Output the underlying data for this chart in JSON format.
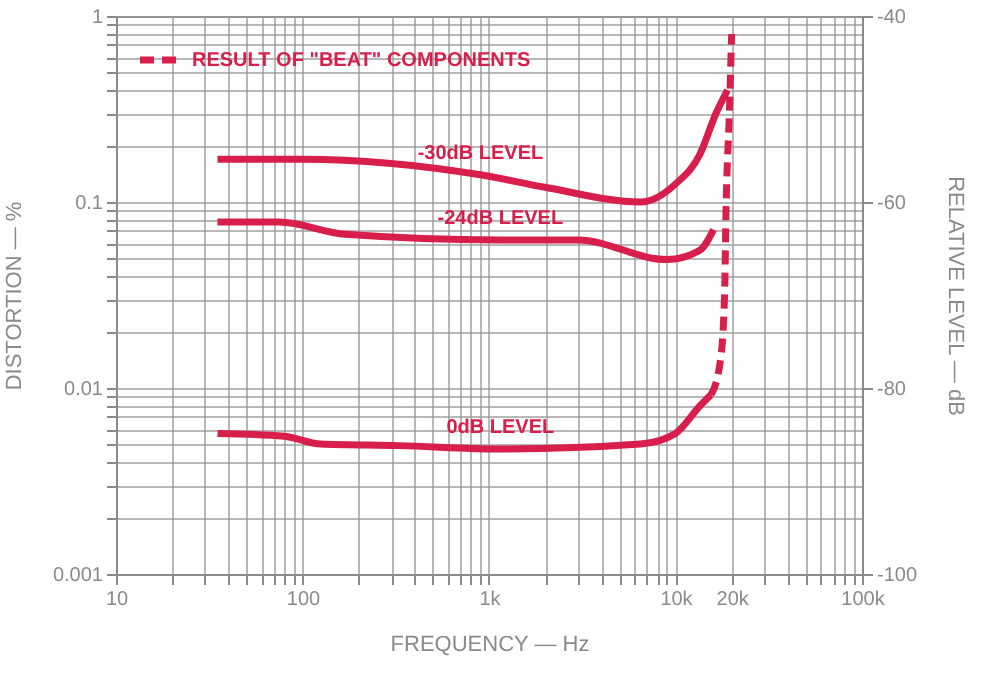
{
  "chart_data": {
    "type": "line",
    "xlabel": "FREQUENCY — Hz",
    "ylabel": "DISTORTION — %",
    "y2label": "RELATIVE LEVEL — dB",
    "log": "xy",
    "grid": true,
    "legend": "top left",
    "xlim": [
      10,
      100000
    ],
    "xticks": [
      10,
      {
        "value": 20,
        "label": null
      },
      {
        "value": 30,
        "label": null
      },
      {
        "value": 40,
        "label": null
      },
      {
        "value": 50,
        "label": null
      },
      {
        "value": 60,
        "label": null
      },
      {
        "value": 70,
        "label": null
      },
      {
        "value": 80,
        "label": null
      },
      {
        "value": 90,
        "label": null
      },
      100,
      {
        "value": 200,
        "label": null
      },
      {
        "value": 300,
        "label": null
      },
      {
        "value": 400,
        "label": null
      },
      {
        "value": 500,
        "label": null
      },
      {
        "value": 600,
        "label": null
      },
      {
        "value": 700,
        "label": null
      },
      {
        "value": 800,
        "label": null
      },
      {
        "value": 900,
        "label": null
      },
      {
        "value": 1000,
        "label": "1k"
      },
      {
        "value": 2000,
        "label": null
      },
      {
        "value": 3000,
        "label": null
      },
      {
        "value": 4000,
        "label": null
      },
      {
        "value": 5000,
        "label": null
      },
      {
        "value": 6000,
        "label": null
      },
      {
        "value": 7000,
        "label": null
      },
      {
        "value": 8000,
        "label": null
      },
      {
        "value": 9000,
        "label": null
      },
      {
        "value": 10000,
        "label": "10k"
      },
      {
        "value": 20000,
        "label": "20k"
      },
      {
        "value": 30000,
        "label": null
      },
      {
        "value": 40000,
        "label": null
      },
      {
        "value": 50000,
        "label": null
      },
      {
        "value": 60000,
        "label": null
      },
      {
        "value": 70000,
        "label": null
      },
      {
        "value": 80000,
        "label": null
      },
      {
        "value": 90000,
        "label": null
      },
      {
        "value": 100000,
        "label": "100k"
      }
    ],
    "ylim": [
      0.001,
      1
    ],
    "yticks": [
      0.001,
      {
        "value": 0.002,
        "label": null
      },
      {
        "value": 0.003,
        "label": null
      },
      {
        "value": 0.004,
        "label": null
      },
      {
        "value": 0.005,
        "label": null
      },
      {
        "value": 0.006,
        "label": null
      },
      {
        "value": 0.007,
        "label": null
      },
      {
        "value": 0.008,
        "label": null
      },
      {
        "value": 0.009,
        "label": null
      },
      0.01,
      {
        "value": 0.02,
        "label": null
      },
      {
        "value": 0.03,
        "label": null
      },
      {
        "value": 0.04,
        "label": null
      },
      {
        "value": 0.05,
        "label": null
      },
      {
        "value": 0.06,
        "label": null
      },
      {
        "value": 0.07,
        "label": null
      },
      {
        "value": 0.08,
        "label": null
      },
      {
        "value": 0.09,
        "label": null
      },
      0.1,
      {
        "value": 0.2,
        "label": null
      },
      {
        "value": 0.3,
        "label": null
      },
      {
        "value": 0.4,
        "label": null
      },
      {
        "value": 0.5,
        "label": null
      },
      {
        "value": 0.6,
        "label": null
      },
      {
        "value": 0.7,
        "label": null
      },
      {
        "value": 0.8,
        "label": null
      },
      {
        "value": 0.9,
        "label": null
      },
      1
    ],
    "y2lim": [
      -100,
      -40
    ],
    "y2ticks": [
      -100,
      -80,
      -60,
      -40
    ],
    "series": [
      {
        "name": "-30dB LEVEL",
        "color": "#d81e4a",
        "x": [
          35,
          100,
          900,
          2000,
          6500,
          10000,
          13500,
          16500,
          19000
        ],
        "values": [
          0.17,
          0.17,
          0.14,
          0.12,
          0.1,
          0.125,
          0.18,
          0.3,
          0.4
        ]
      },
      {
        "name": "-24dB LEVEL",
        "color": "#d81e4a",
        "x": [
          35,
          75,
          170,
          1150,
          3000,
          9000,
          13500,
          16000
        ],
        "values": [
          0.078,
          0.078,
          0.067,
          0.0625,
          0.0625,
          0.049,
          0.055,
          0.071
        ]
      },
      {
        "name": "0dB LEVEL",
        "color": "#d81e4a",
        "x": [
          35,
          80,
          125,
          330,
          1150,
          6500,
          10000,
          13500,
          15500
        ],
        "values": [
          0.0057,
          0.0055,
          0.005,
          0.0049,
          0.0047,
          0.005,
          0.0057,
          0.008,
          0.0092
        ]
      },
      {
        "name": "RESULT OF \"BEAT\" COMPONENTS",
        "color": "#d81e4a",
        "line_style": "dashed",
        "x": [
          15500,
          17400,
          18300,
          18700,
          19400,
          20000
        ],
        "values": [
          0.0092,
          0.014,
          0.03,
          0.1,
          0.28,
          0.8
        ]
      }
    ]
  }
}
